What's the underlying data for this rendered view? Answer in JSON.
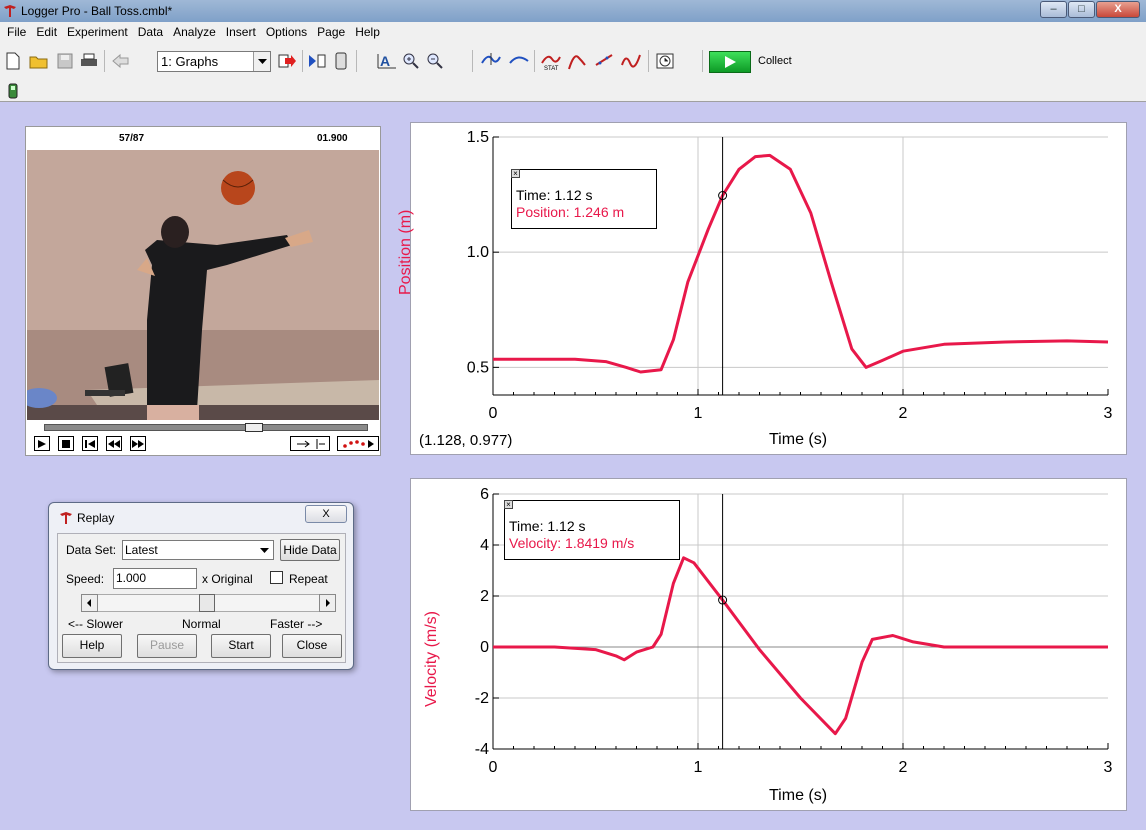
{
  "window": {
    "title": "Logger Pro - Ball Toss.cmbl*",
    "min": "–",
    "max": "□",
    "close": "X"
  },
  "menu": [
    "File",
    "Edit",
    "Experiment",
    "Data",
    "Analyze",
    "Insert",
    "Options",
    "Page",
    "Help"
  ],
  "toolbar": {
    "page_select": "1: Graphs",
    "collect_label": "Collect"
  },
  "video": {
    "frame_counter": "57/87",
    "time": "01.900"
  },
  "graph1": {
    "ylabel": "Position (m)",
    "xlabel": "Time (s)",
    "coord_readout": "(1.128, 0.977)",
    "cursor_time": "Time: 1.12 s",
    "cursor_value": "Position: 1.246 m",
    "yticks": [
      "1.5",
      "1.0",
      "0.5"
    ],
    "xticks": [
      "0",
      "1",
      "2",
      "3"
    ]
  },
  "graph2": {
    "ylabel": "Velocity (m/s)",
    "xlabel": "Time (s)",
    "cursor_time": "Time: 1.12 s",
    "cursor_value": "Velocity: 1.8419 m/s",
    "yticks": [
      "6",
      "4",
      "2",
      "0",
      "-2",
      "-4"
    ],
    "xticks": [
      "0",
      "1",
      "2",
      "3"
    ]
  },
  "replay": {
    "title": "Replay",
    "close": "X",
    "dataset_label": "Data Set:",
    "dataset_value": "Latest",
    "hide_data": "Hide Data",
    "speed_label": "Speed:",
    "speed_value": "1.000",
    "x_original": "x Original",
    "repeat": "Repeat",
    "slower": "<-- Slower",
    "normal": "Normal",
    "faster": "Faster -->",
    "help": "Help",
    "pause": "Pause",
    "start": "Start",
    "close_btn": "Close"
  },
  "chart_data": [
    {
      "type": "line",
      "xlabel": "Time (s)",
      "ylabel": "Position (m)",
      "xlim": [
        0,
        3
      ],
      "ylim": [
        0.38,
        1.5
      ],
      "series": [
        {
          "x": [
            0,
            0.2,
            0.4,
            0.55,
            0.65,
            0.72,
            0.82,
            0.88,
            0.95,
            1.05,
            1.12,
            1.2,
            1.28,
            1.35,
            1.45,
            1.55,
            1.65,
            1.75,
            1.82,
            1.9,
            2.0,
            2.2,
            2.5,
            2.8,
            3.0
          ],
          "values": [
            0.535,
            0.535,
            0.535,
            0.525,
            0.5,
            0.48,
            0.49,
            0.62,
            0.87,
            1.1,
            1.246,
            1.36,
            1.415,
            1.42,
            1.36,
            1.17,
            0.87,
            0.58,
            0.5,
            0.53,
            0.57,
            0.6,
            0.61,
            0.615,
            0.61
          ]
        }
      ],
      "cursor": {
        "x": 1.12,
        "y": 1.246
      }
    },
    {
      "type": "line",
      "xlabel": "Time (s)",
      "ylabel": "Velocity (m/s)",
      "xlim": [
        0,
        3
      ],
      "ylim": [
        -4,
        6
      ],
      "series": [
        {
          "x": [
            0,
            0.3,
            0.5,
            0.6,
            0.64,
            0.7,
            0.78,
            0.82,
            0.88,
            0.93,
            0.98,
            1.12,
            1.3,
            1.5,
            1.67,
            1.72,
            1.8,
            1.85,
            1.95,
            2.05,
            2.2,
            2.5,
            3.0
          ],
          "values": [
            0,
            0,
            -0.1,
            -0.35,
            -0.5,
            -0.2,
            0,
            0.5,
            2.5,
            3.5,
            3.3,
            1.84,
            -0.1,
            -2.0,
            -3.4,
            -2.8,
            -0.6,
            0.3,
            0.45,
            0.2,
            0,
            0,
            0
          ]
        }
      ],
      "cursor": {
        "x": 1.12,
        "y": 1.8419
      }
    }
  ],
  "colors": {
    "trace": "#e8184a",
    "background": "#c8c8f0"
  }
}
